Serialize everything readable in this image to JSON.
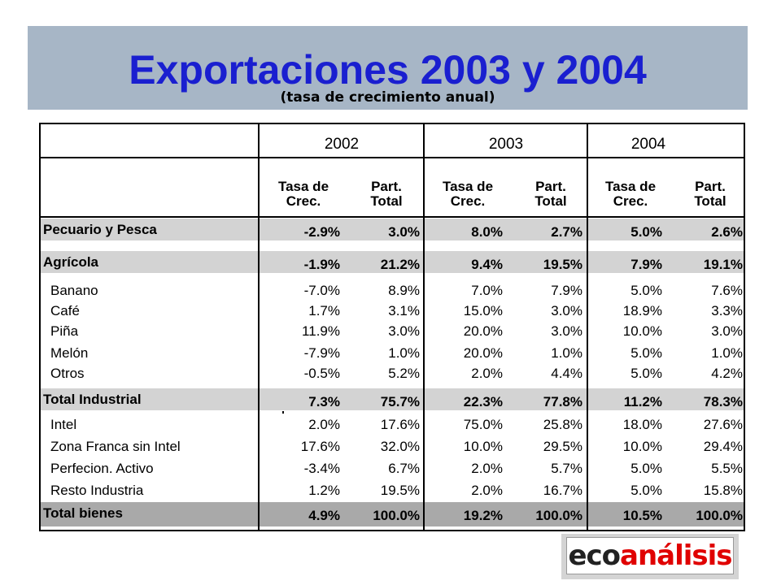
{
  "header": {
    "title": "Exportaciones 2003 y 2004",
    "subtitle": "(tasa de crecimiento anual)"
  },
  "table": {
    "years": [
      "2002",
      "2003",
      "2004"
    ],
    "subheaders": {
      "rate_line1": "Tasa de",
      "rate_line2": "Crec.",
      "share_line1": "Part.",
      "share_line2": "Total"
    },
    "rows": [
      {
        "label": "Pecuario y Pesca",
        "style": "total",
        "values": [
          "-2.9%",
          "3.0%",
          "8.0%",
          "2.7%",
          "5.0%",
          "2.6%"
        ]
      },
      {
        "label": "Agrícola",
        "style": "total",
        "values": [
          "-1.9%",
          "21.2%",
          "9.4%",
          "19.5%",
          "7.9%",
          "19.1%"
        ]
      },
      {
        "label": "Banano",
        "style": "sub",
        "values": [
          "-7.0%",
          "8.9%",
          "7.0%",
          "7.9%",
          "5.0%",
          "7.6%"
        ]
      },
      {
        "label": "Café",
        "style": "sub",
        "values": [
          "1.7%",
          "3.1%",
          "15.0%",
          "3.0%",
          "18.9%",
          "3.3%"
        ]
      },
      {
        "label": "Piña",
        "style": "sub",
        "values": [
          "11.9%",
          "3.0%",
          "20.0%",
          "3.0%",
          "10.0%",
          "3.0%"
        ]
      },
      {
        "label": "Melón",
        "style": "sub",
        "values": [
          "-7.9%",
          "1.0%",
          "20.0%",
          "1.0%",
          "5.0%",
          "1.0%"
        ]
      },
      {
        "label": "Otros",
        "style": "sub",
        "values": [
          "-0.5%",
          "5.2%",
          "2.0%",
          "4.4%",
          "5.0%",
          "4.2%"
        ]
      },
      {
        "label": "Total Industrial",
        "style": "total",
        "values": [
          "7.3%",
          "75.7%",
          "22.3%",
          "77.8%",
          "11.2%",
          "78.3%"
        ]
      },
      {
        "label": "Intel",
        "style": "sub",
        "values": [
          "2.0%",
          "17.6%",
          "75.0%",
          "25.8%",
          "18.0%",
          "27.6%"
        ]
      },
      {
        "label": "Zona Franca sin Intel",
        "style": "sub",
        "values": [
          "17.6%",
          "32.0%",
          "10.0%",
          "29.5%",
          "10.0%",
          "29.4%"
        ]
      },
      {
        "label": "Perfecion. Activo",
        "style": "sub",
        "values": [
          "-3.4%",
          "6.7%",
          "2.0%",
          "5.7%",
          "5.0%",
          "5.5%"
        ]
      },
      {
        "label": "Resto Industria",
        "style": "sub",
        "values": [
          "1.2%",
          "19.5%",
          "2.0%",
          "16.7%",
          "5.0%",
          "15.8%"
        ]
      },
      {
        "label": "Total bienes",
        "style": "grand",
        "values": [
          "4.9%",
          "100.0%",
          "19.2%",
          "100.0%",
          "10.5%",
          "100.0%"
        ]
      }
    ]
  },
  "logo": {
    "part1": "eco",
    "part2": "análisis",
    "colors": {
      "part1": "#222222",
      "part2": "#e00000"
    }
  },
  "colors": {
    "title": "#1a1fd0",
    "header_band": "#a7b6c6",
    "row_total": "#d3d3d3",
    "row_grand": "#a9a9a9"
  }
}
